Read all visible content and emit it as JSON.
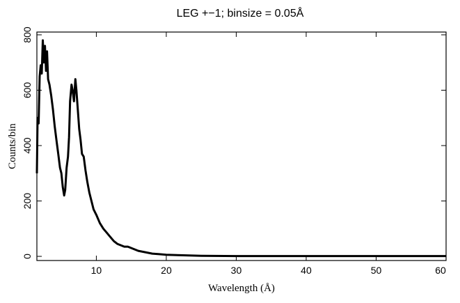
{
  "chart_data": {
    "type": "line",
    "title": "LEG +−1; binsize = 0.05Å",
    "xlabel": "Wavelength (Å)",
    "ylabel": "Counts/bin",
    "xlim": [
      1.5,
      60
    ],
    "ylim": [
      -15,
      810
    ],
    "x_ticks": [
      10,
      20,
      30,
      40,
      50,
      60
    ],
    "y_ticks": [
      0,
      200,
      400,
      600,
      800
    ],
    "grid": false,
    "legend": "none",
    "series": [
      {
        "color": "#000000",
        "points": [
          [
            1.5,
            300
          ],
          [
            1.6,
            500
          ],
          [
            1.75,
            480
          ],
          [
            1.9,
            650
          ],
          [
            2.05,
            690
          ],
          [
            2.2,
            660
          ],
          [
            2.35,
            780
          ],
          [
            2.5,
            700
          ],
          [
            2.65,
            760
          ],
          [
            2.8,
            670
          ],
          [
            2.95,
            740
          ],
          [
            3.1,
            640
          ],
          [
            3.3,
            620
          ],
          [
            3.55,
            580
          ],
          [
            3.8,
            530
          ],
          [
            4.05,
            470
          ],
          [
            4.3,
            420
          ],
          [
            4.55,
            370
          ],
          [
            4.8,
            320
          ],
          [
            5.0,
            300
          ],
          [
            5.2,
            250
          ],
          [
            5.4,
            220
          ],
          [
            5.55,
            240
          ],
          [
            5.75,
            320
          ],
          [
            5.95,
            360
          ],
          [
            6.1,
            430
          ],
          [
            6.25,
            560
          ],
          [
            6.45,
            620
          ],
          [
            6.6,
            600
          ],
          [
            6.8,
            560
          ],
          [
            7.0,
            640
          ],
          [
            7.15,
            600
          ],
          [
            7.35,
            530
          ],
          [
            7.55,
            460
          ],
          [
            7.75,
            420
          ],
          [
            7.95,
            370
          ],
          [
            8.2,
            360
          ],
          [
            8.45,
            310
          ],
          [
            8.7,
            270
          ],
          [
            9.0,
            230
          ],
          [
            9.3,
            200
          ],
          [
            9.6,
            170
          ],
          [
            10.0,
            150
          ],
          [
            10.5,
            120
          ],
          [
            11.0,
            100
          ],
          [
            11.5,
            85
          ],
          [
            12.0,
            70
          ],
          [
            12.5,
            55
          ],
          [
            13.0,
            45
          ],
          [
            13.5,
            40
          ],
          [
            14.0,
            35
          ],
          [
            14.5,
            35
          ],
          [
            15.0,
            30
          ],
          [
            15.5,
            25
          ],
          [
            16.0,
            20
          ],
          [
            17.0,
            15
          ],
          [
            18.0,
            10
          ],
          [
            19.0,
            8
          ],
          [
            20.0,
            6
          ],
          [
            22.0,
            4
          ],
          [
            25.0,
            2
          ],
          [
            30.0,
            1
          ],
          [
            40.0,
            1
          ],
          [
            50.0,
            1
          ],
          [
            60.0,
            1
          ]
        ]
      }
    ]
  }
}
